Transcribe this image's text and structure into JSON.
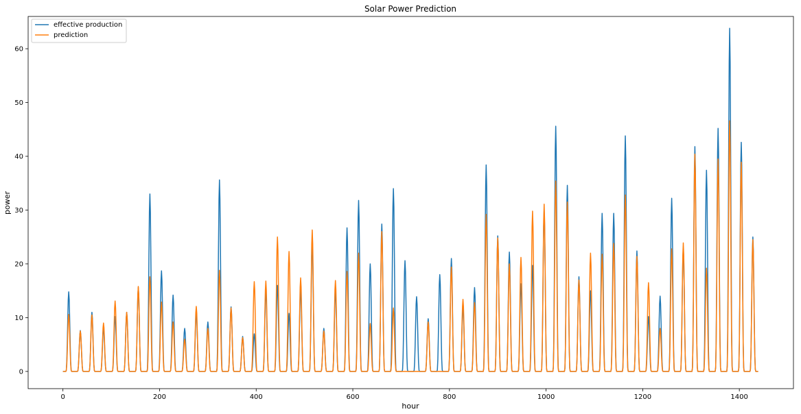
{
  "chart_data": {
    "type": "line",
    "title": "Solar Power Prediction",
    "xlabel": "hour",
    "ylabel": "power",
    "xlim": [
      -72,
      1512
    ],
    "ylim": [
      -3.2,
      66.0
    ],
    "xticks": [
      0,
      200,
      400,
      600,
      800,
      1000,
      1200,
      1400
    ],
    "yticks": [
      0,
      10,
      20,
      30,
      40,
      50,
      60
    ],
    "grid": false,
    "legend": "top-left",
    "x": {
      "start": 0,
      "end": 1439,
      "period": 24
    },
    "series": [
      {
        "name": "effective production",
        "color": "#1f77b4",
        "day_peaks": [
          14.8,
          7.6,
          11.0,
          8.0,
          10.2,
          11.0,
          15.6,
          33.0,
          18.7,
          14.2,
          8.0,
          11.0,
          9.2,
          35.6,
          12.0,
          6.5,
          7.0,
          15.0,
          16.0,
          10.8,
          15.3,
          24.0,
          8.0,
          15.0,
          26.7,
          31.8,
          20.0,
          27.4,
          34.0,
          20.6,
          13.9,
          9.8,
          18.0,
          21.0,
          12.0,
          15.6,
          38.4,
          25.2,
          22.2,
          16.3,
          19.7,
          30.0,
          45.6,
          34.6,
          17.6,
          15.0,
          29.4,
          29.4,
          43.8,
          22.4,
          10.2,
          14.0,
          32.2,
          23.0,
          41.8,
          37.4,
          45.2,
          63.8,
          42.6,
          25.0
        ]
      },
      {
        "name": "prediction",
        "color": "#ff7f0e",
        "day_peaks": [
          10.6,
          7.5,
          10.5,
          9.0,
          13.1,
          11.0,
          15.8,
          17.6,
          12.9,
          9.2,
          6.0,
          12.1,
          8.0,
          18.8,
          11.8,
          6.3,
          16.7,
          16.8,
          25.0,
          22.3,
          17.4,
          26.3,
          7.5,
          16.9,
          18.6,
          22.0,
          8.9,
          26.0,
          11.8,
          0,
          0,
          9.2,
          0,
          19.4,
          13.4,
          12.8,
          29.2,
          24.8,
          20.0,
          21.2,
          29.8,
          31.1,
          35.4,
          31.5,
          17.0,
          22.0,
          21.8,
          23.8,
          32.8,
          21.4,
          16.5,
          8.0,
          22.8,
          23.9,
          40.4,
          19.2,
          39.5,
          46.6,
          38.9,
          24.5
        ]
      }
    ]
  }
}
